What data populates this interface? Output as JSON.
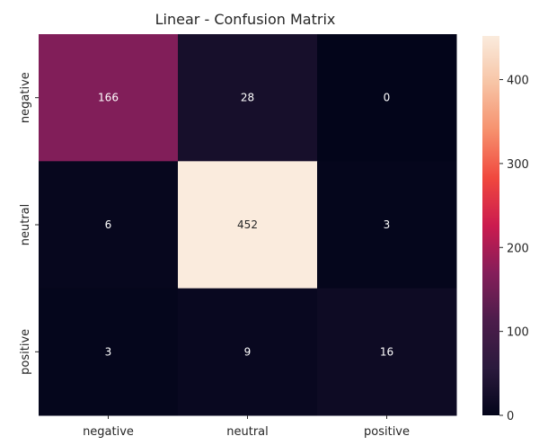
{
  "chart_data": {
    "type": "heatmap",
    "title": "Linear - Confusion Matrix",
    "x_categories": [
      "negative",
      "neutral",
      "positive"
    ],
    "y_categories": [
      "negative",
      "neutral",
      "positive"
    ],
    "values": [
      [
        166,
        28,
        0
      ],
      [
        6,
        452,
        3
      ],
      [
        3,
        9,
        16
      ]
    ],
    "colorbar": {
      "range": [
        0,
        452
      ],
      "ticks": [
        0,
        100,
        200,
        300,
        400
      ]
    },
    "colormap": "rocket",
    "xlabel": "",
    "ylabel": ""
  }
}
